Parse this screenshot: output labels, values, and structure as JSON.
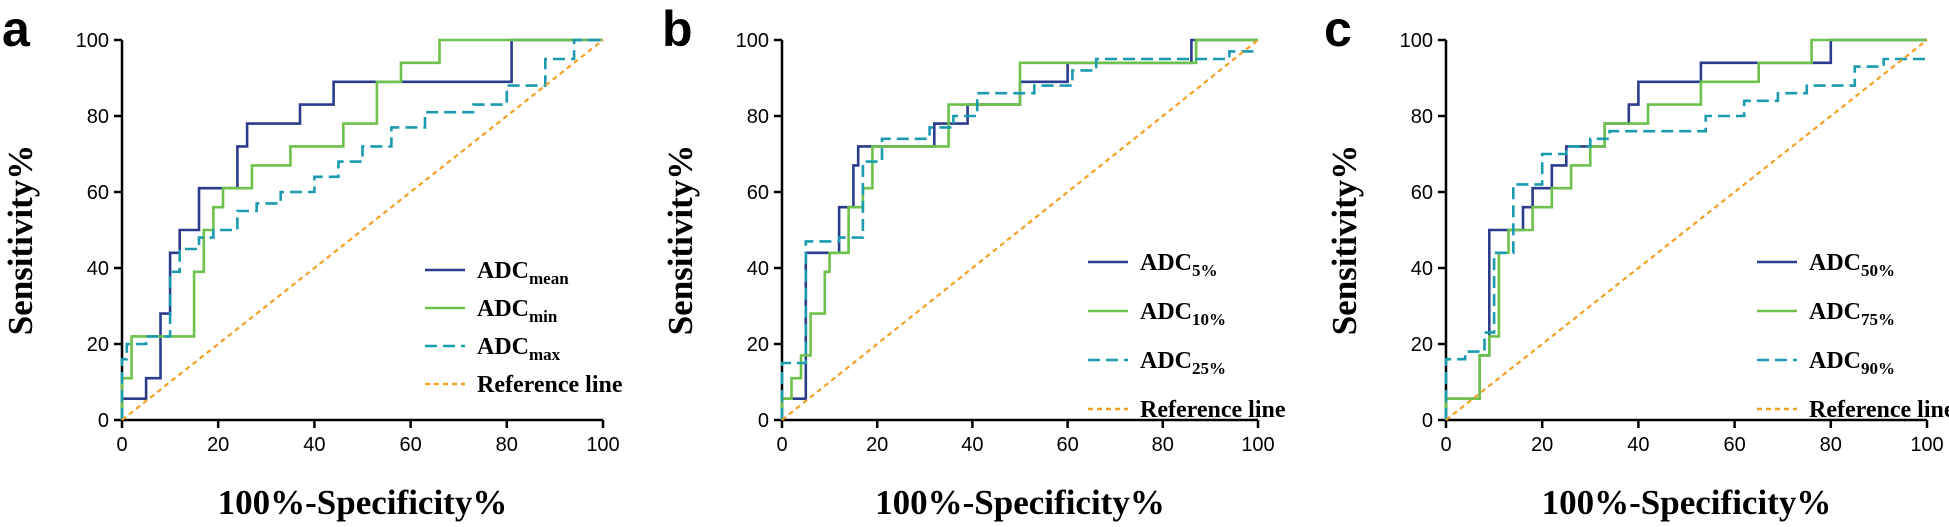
{
  "figure": {
    "type": "roc-curves"
  },
  "colors": {
    "navy": "#2b3c8e",
    "green": "#6cc24a",
    "teal": "#1a9bb0",
    "orange": "#f4a023"
  },
  "chart_data": [
    {
      "panel": "a",
      "type": "line",
      "xlabel": "100%-Specificity%",
      "ylabel": "Sensitivity%",
      "xlim": [
        0,
        100
      ],
      "ylim": [
        0,
        100
      ],
      "xticks": [
        0,
        20,
        40,
        60,
        80,
        100
      ],
      "yticks": [
        0,
        20,
        40,
        60,
        80,
        100
      ],
      "legend_position": "lower-right",
      "series": [
        {
          "name": "ADC",
          "sub": "mean",
          "color": "#2b3c8e",
          "dash": "solid",
          "x": [
            0,
            0,
            5,
            5,
            8,
            8,
            10,
            10,
            12,
            12,
            16,
            16,
            24,
            24,
            26,
            26,
            32,
            32,
            37,
            37,
            44,
            44,
            54,
            54,
            67,
            67,
            81,
            81,
            100
          ],
          "y": [
            0,
            5.6,
            5.6,
            11,
            11,
            28,
            28,
            44,
            44,
            50,
            50,
            61,
            61,
            72,
            72,
            78,
            78,
            78,
            78,
            83,
            83,
            89,
            89,
            89,
            89,
            89,
            89,
            100,
            100
          ]
        },
        {
          "name": "ADC",
          "sub": "min",
          "color": "#6cc24a",
          "dash": "solid",
          "x": [
            0,
            0,
            2,
            2,
            15,
            15,
            17,
            17,
            19,
            19,
            21,
            21,
            23,
            23,
            27,
            27,
            29,
            29,
            35,
            35,
            46,
            46,
            53,
            53,
            58,
            58,
            66,
            66,
            100
          ],
          "y": [
            0,
            11,
            11,
            22,
            22,
            39,
            39,
            50,
            50,
            56,
            56,
            61,
            61,
            61,
            61,
            67,
            67,
            67,
            67,
            72,
            72,
            78,
            78,
            89,
            89,
            94,
            94,
            100,
            100
          ]
        },
        {
          "name": "ADC",
          "sub": "max",
          "color": "#1a9bb0",
          "dash": "dashed",
          "x": [
            0,
            0,
            1,
            1,
            5,
            5,
            10,
            10,
            12,
            12,
            16,
            16,
            19,
            19,
            24,
            24,
            28,
            28,
            33,
            33,
            40,
            40,
            45,
            45,
            50,
            50,
            56,
            56,
            63,
            63,
            73,
            73,
            80,
            80,
            88,
            88,
            94,
            94,
            100
          ],
          "y": [
            0,
            16,
            16,
            20,
            20,
            22,
            22,
            39,
            39,
            45,
            45,
            48,
            48,
            50,
            50,
            55,
            55,
            57,
            57,
            60,
            60,
            64,
            64,
            68,
            68,
            72,
            72,
            77,
            77,
            81,
            81,
            83,
            83,
            88,
            88,
            95,
            95,
            100,
            100
          ]
        },
        {
          "name": "Reference line",
          "sub": "",
          "color": "#f4a023",
          "dash": "dotted",
          "x": [
            0,
            100
          ],
          "y": [
            0,
            100
          ]
        }
      ]
    },
    {
      "panel": "b",
      "type": "line",
      "xlabel": "100%-Specificity%",
      "ylabel": "Sensitivity%",
      "xlim": [
        0,
        100
      ],
      "ylim": [
        0,
        100
      ],
      "xticks": [
        0,
        20,
        40,
        60,
        80,
        100
      ],
      "yticks": [
        0,
        20,
        40,
        60,
        80,
        100
      ],
      "legend_position": "lower-right",
      "series": [
        {
          "name": "ADC",
          "sub": "5%",
          "color": "#2b3c8e",
          "dash": "solid",
          "x": [
            0,
            0,
            5,
            5,
            7,
            7,
            12,
            12,
            15,
            15,
            16,
            16,
            32,
            32,
            34,
            34,
            39,
            39,
            50,
            50,
            60,
            60,
            86,
            86,
            100
          ],
          "y": [
            0,
            5.6,
            5.6,
            44,
            44,
            44,
            44,
            56,
            56,
            67,
            67,
            72,
            72,
            78,
            78,
            78,
            78,
            83,
            83,
            89,
            89,
            94,
            94,
            100,
            100
          ]
        },
        {
          "name": "ADC",
          "sub": "10%",
          "color": "#6cc24a",
          "dash": "solid",
          "x": [
            0,
            0,
            2,
            2,
            4,
            4,
            6,
            6,
            9,
            9,
            10,
            10,
            14,
            14,
            17,
            17,
            19,
            19,
            27,
            27,
            35,
            35,
            40,
            40,
            50,
            50,
            58,
            58,
            87,
            87,
            100
          ],
          "y": [
            0,
            5.6,
            5.6,
            11,
            11,
            17,
            17,
            28,
            28,
            39,
            39,
            44,
            44,
            56,
            56,
            61,
            61,
            72,
            72,
            72,
            72,
            83,
            83,
            83,
            83,
            94,
            94,
            94,
            94,
            100,
            100
          ]
        },
        {
          "name": "ADC",
          "sub": "25%",
          "color": "#1a9bb0",
          "dash": "dashed",
          "x": [
            0,
            0,
            2,
            2,
            5,
            5,
            12,
            12,
            17,
            17,
            21,
            21,
            31,
            31,
            36,
            36,
            41,
            41,
            53,
            53,
            61,
            61,
            66,
            66,
            94,
            94,
            100
          ],
          "y": [
            0,
            15,
            15,
            15,
            15,
            47,
            47,
            48,
            48,
            68,
            68,
            74,
            74,
            77,
            77,
            80,
            80,
            86,
            86,
            88,
            88,
            92,
            92,
            95,
            95,
            97,
            97
          ]
        },
        {
          "name": "Reference line",
          "sub": "",
          "color": "#f4a023",
          "dash": "dotted",
          "x": [
            0,
            100
          ],
          "y": [
            0,
            100
          ]
        }
      ]
    },
    {
      "panel": "c",
      "type": "line",
      "xlabel": "100%-Specificity%",
      "ylabel": "Sensitivity%",
      "xlim": [
        0,
        100
      ],
      "ylim": [
        0,
        100
      ],
      "xticks": [
        0,
        20,
        40,
        60,
        80,
        100
      ],
      "yticks": [
        0,
        20,
        40,
        60,
        80,
        100
      ],
      "legend_position": "lower-right",
      "series": [
        {
          "name": "ADC",
          "sub": "50%",
          "color": "#2b3c8e",
          "dash": "solid",
          "x": [
            0,
            0,
            7,
            7,
            9,
            9,
            16,
            16,
            18,
            18,
            22,
            22,
            25,
            25,
            33,
            33,
            38,
            38,
            40,
            40,
            53,
            53,
            80,
            80,
            100
          ],
          "y": [
            0,
            5.6,
            5.6,
            17,
            17,
            50,
            50,
            56,
            56,
            61,
            61,
            67,
            67,
            72,
            72,
            78,
            78,
            83,
            83,
            89,
            89,
            94,
            94,
            100,
            100
          ]
        },
        {
          "name": "ADC",
          "sub": "75%",
          "color": "#6cc24a",
          "dash": "solid",
          "x": [
            0,
            0,
            2,
            2,
            7,
            7,
            9,
            9,
            11,
            11,
            13,
            13,
            18,
            18,
            22,
            22,
            26,
            26,
            30,
            30,
            33,
            33,
            42,
            42,
            53,
            53,
            65,
            65,
            76,
            76,
            100
          ],
          "y": [
            0,
            5.6,
            5.6,
            5.6,
            5.6,
            17,
            17,
            22,
            22,
            44,
            44,
            50,
            50,
            56,
            56,
            61,
            61,
            67,
            67,
            72,
            72,
            78,
            78,
            83,
            83,
            89,
            89,
            94,
            94,
            100,
            100
          ]
        },
        {
          "name": "ADC",
          "sub": "90%",
          "color": "#1a9bb0",
          "dash": "dashed",
          "x": [
            0,
            0,
            4,
            4,
            8,
            8,
            10,
            10,
            14,
            14,
            20,
            20,
            25,
            25,
            30,
            30,
            34,
            34,
            45,
            45,
            54,
            54,
            62,
            62,
            69,
            69,
            75,
            75,
            85,
            85,
            91,
            91,
            100
          ],
          "y": [
            0,
            16,
            16,
            18,
            18,
            23,
            23,
            44,
            44,
            62,
            62,
            70,
            70,
            72,
            72,
            74,
            74,
            76,
            76,
            76,
            76,
            80,
            80,
            84,
            84,
            86,
            86,
            88,
            88,
            93,
            93,
            95,
            95
          ]
        },
        {
          "name": "Reference line",
          "sub": "",
          "color": "#f4a023",
          "dash": "dotted",
          "x": [
            0,
            100
          ],
          "y": [
            0,
            100
          ]
        }
      ]
    }
  ]
}
